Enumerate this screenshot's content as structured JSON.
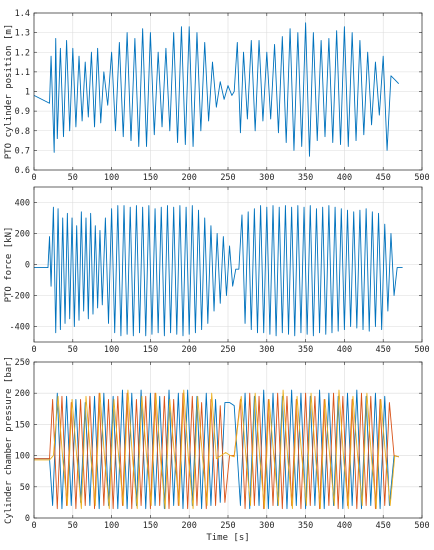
{
  "chart_data": [
    {
      "type": "line",
      "ylabel": "PTO cylinder position [m]",
      "xlabel": "",
      "xlim": [
        0,
        500
      ],
      "ylim": [
        0.6,
        1.4
      ],
      "xticks": [
        "0",
        "50",
        "100",
        "150",
        "200",
        "250",
        "300",
        "350",
        "400",
        "450",
        "500"
      ],
      "yticks": [
        "0.6",
        "0.7",
        "0.8",
        "0.9",
        "1",
        "1.1",
        "1.2",
        "1.3",
        "1.4"
      ],
      "grid": true,
      "series": [
        {
          "color": "#0072BD",
          "x": [
            0,
            20,
            22,
            26,
            28,
            30,
            34,
            38,
            42,
            46,
            50,
            54,
            58,
            62,
            66,
            70,
            74,
            78,
            82,
            86,
            90,
            95,
            100,
            105,
            110,
            115,
            120,
            125,
            130,
            135,
            140,
            145,
            150,
            155,
            160,
            165,
            170,
            175,
            180,
            185,
            190,
            195,
            200,
            205,
            210,
            215,
            220,
            225,
            230,
            235,
            240,
            245,
            250,
            255,
            258,
            262,
            266,
            270,
            275,
            280,
            285,
            290,
            295,
            300,
            305,
            310,
            315,
            320,
            325,
            330,
            335,
            340,
            345,
            350,
            355,
            360,
            365,
            370,
            375,
            380,
            385,
            390,
            395,
            400,
            405,
            410,
            415,
            420,
            425,
            430,
            435,
            440,
            445,
            450,
            455,
            460,
            465,
            470
          ],
          "values": [
            0.98,
            0.94,
            1.18,
            0.69,
            1.27,
            0.76,
            1.22,
            0.77,
            1.26,
            0.8,
            1.22,
            0.82,
            1.18,
            0.85,
            1.15,
            0.87,
            1.2,
            0.82,
            1.22,
            0.84,
            1.1,
            0.93,
            1.2,
            0.8,
            1.25,
            0.77,
            1.3,
            0.75,
            1.27,
            0.72,
            1.32,
            0.72,
            1.3,
            0.78,
            1.2,
            0.82,
            1.22,
            0.8,
            1.3,
            0.74,
            1.33,
            0.73,
            1.33,
            0.72,
            1.3,
            0.8,
            1.25,
            0.85,
            1.15,
            0.92,
            1.05,
            0.96,
            1.03,
            0.98,
            1.0,
            1.25,
            0.79,
            1.2,
            0.86,
            1.26,
            0.8,
            1.26,
            0.85,
            1.2,
            0.86,
            1.24,
            0.79,
            1.28,
            0.74,
            1.32,
            0.7,
            1.3,
            0.72,
            1.35,
            0.67,
            1.3,
            0.75,
            1.26,
            0.77,
            1.27,
            0.74,
            1.31,
            0.73,
            1.33,
            0.72,
            1.3,
            0.75,
            1.26,
            0.78,
            1.2,
            0.83,
            1.15,
            0.88,
            1.18,
            0.7,
            1.08,
            1.06,
            1.04
          ]
        }
      ]
    },
    {
      "type": "line",
      "ylabel": "PTO force [kN]",
      "xlabel": "",
      "xlim": [
        0,
        500
      ],
      "ylim": [
        -500,
        500
      ],
      "xticks": [
        "0",
        "50",
        "100",
        "150",
        "200",
        "250",
        "300",
        "350",
        "400",
        "450",
        "500"
      ],
      "yticks": [
        "-400",
        "-200",
        "0",
        "200",
        "400"
      ],
      "grid": true,
      "series": [
        {
          "color": "#0072BD",
          "x": [
            0,
            18,
            20,
            22,
            25,
            28,
            31,
            34,
            37,
            40,
            43,
            46,
            49,
            52,
            55,
            58,
            61,
            64,
            67,
            70,
            73,
            76,
            79,
            82,
            85,
            88,
            92,
            96,
            100,
            104,
            108,
            112,
            116,
            120,
            124,
            128,
            132,
            136,
            140,
            144,
            148,
            152,
            156,
            160,
            164,
            168,
            172,
            176,
            180,
            184,
            188,
            192,
            196,
            200,
            204,
            208,
            212,
            216,
            220,
            224,
            228,
            232,
            236,
            240,
            244,
            248,
            252,
            256,
            260,
            264,
            268,
            272,
            276,
            280,
            284,
            288,
            292,
            296,
            300,
            304,
            308,
            312,
            316,
            320,
            324,
            328,
            332,
            336,
            340,
            344,
            348,
            352,
            356,
            360,
            364,
            368,
            372,
            376,
            380,
            384,
            388,
            392,
            396,
            400,
            404,
            408,
            412,
            416,
            420,
            424,
            428,
            432,
            436,
            440,
            444,
            448,
            452,
            456,
            460,
            464,
            468,
            475
          ],
          "values": [
            -20,
            -20,
            180,
            -140,
            370,
            -440,
            360,
            -420,
            300,
            -380,
            330,
            -350,
            300,
            -400,
            250,
            -360,
            340,
            -300,
            300,
            -350,
            330,
            -320,
            250,
            -280,
            220,
            -260,
            300,
            -380,
            360,
            -440,
            380,
            -460,
            380,
            -450,
            370,
            -460,
            380,
            -440,
            370,
            -460,
            380,
            -450,
            360,
            -440,
            370,
            -460,
            380,
            -440,
            370,
            -450,
            380,
            -460,
            370,
            -450,
            380,
            -440,
            350,
            -420,
            300,
            -380,
            250,
            -300,
            200,
            -250,
            180,
            -200,
            120,
            -140,
            -30,
            -30,
            320,
            -380,
            340,
            -420,
            360,
            -440,
            380,
            -440,
            370,
            -450,
            380,
            -460,
            370,
            -440,
            380,
            -450,
            370,
            -460,
            380,
            -440,
            370,
            -450,
            380,
            -460,
            360,
            -440,
            370,
            -450,
            380,
            -440,
            370,
            -430,
            360,
            -420,
            350,
            -400,
            340,
            -410,
            350,
            -420,
            360,
            -430,
            340,
            -400,
            330,
            -420,
            260,
            -300,
            200,
            -200,
            -20,
            -20
          ]
        }
      ]
    },
    {
      "type": "line",
      "ylabel": "Cylinder chamber pressure [bar]",
      "xlabel": "Time [s]",
      "xlim": [
        0,
        500
      ],
      "ylim": [
        0,
        250
      ],
      "xticks": [
        "0",
        "50",
        "100",
        "150",
        "200",
        "250",
        "300",
        "350",
        "400",
        "450",
        "500"
      ],
      "yticks": [
        "0",
        "50",
        "100",
        "150",
        "200",
        "250"
      ],
      "grid": true,
      "series": [
        {
          "color": "#0072BD",
          "x": [
            0,
            20,
            24,
            30,
            36,
            42,
            48,
            54,
            60,
            66,
            72,
            78,
            84,
            90,
            96,
            102,
            108,
            114,
            120,
            126,
            132,
            138,
            144,
            150,
            156,
            162,
            168,
            174,
            180,
            186,
            192,
            198,
            204,
            210,
            216,
            222,
            228,
            234,
            240,
            246,
            252,
            258,
            266,
            272,
            278,
            284,
            290,
            296,
            302,
            308,
            314,
            320,
            326,
            332,
            338,
            344,
            350,
            356,
            362,
            368,
            374,
            380,
            386,
            392,
            398,
            404,
            410,
            416,
            422,
            428,
            434,
            440,
            446,
            452,
            458,
            464,
            470
          ],
          "values": [
            95,
            95,
            20,
            200,
            15,
            195,
            20,
            190,
            25,
            185,
            20,
            195,
            15,
            200,
            20,
            195,
            15,
            205,
            15,
            200,
            20,
            205,
            15,
            200,
            20,
            195,
            15,
            205,
            20,
            200,
            15,
            205,
            20,
            195,
            15,
            200,
            20,
            190,
            25,
            185,
            185,
            180,
            20,
            200,
            15,
            195,
            20,
            205,
            15,
            200,
            20,
            195,
            15,
            205,
            20,
            200,
            15,
            195,
            20,
            205,
            15,
            200,
            20,
            195,
            15,
            200,
            20,
            205,
            15,
            195,
            20,
            200,
            15,
            195,
            20,
            100,
            98
          ]
        },
        {
          "color": "#D95319",
          "x": [
            0,
            20,
            24,
            30,
            36,
            42,
            48,
            54,
            60,
            66,
            72,
            78,
            84,
            90,
            96,
            102,
            108,
            114,
            120,
            126,
            132,
            138,
            144,
            150,
            156,
            162,
            168,
            174,
            180,
            186,
            192,
            198,
            204,
            210,
            216,
            222,
            228,
            234,
            240,
            246,
            252,
            258,
            266,
            272,
            278,
            284,
            290,
            296,
            302,
            308,
            314,
            320,
            326,
            332,
            338,
            344,
            350,
            356,
            362,
            368,
            374,
            380,
            386,
            392,
            398,
            404,
            410,
            416,
            422,
            428,
            434,
            440,
            446,
            452,
            458,
            464,
            470
          ],
          "values": [
            95,
            95,
            190,
            15,
            195,
            20,
            185,
            15,
            190,
            20,
            195,
            15,
            200,
            20,
            190,
            15,
            195,
            20,
            200,
            15,
            190,
            20,
            195,
            15,
            200,
            20,
            195,
            15,
            190,
            20,
            200,
            15,
            195,
            20,
            185,
            15,
            190,
            20,
            180,
            25,
            100,
            100,
            190,
            15,
            200,
            20,
            195,
            15,
            190,
            20,
            200,
            15,
            195,
            20,
            190,
            15,
            200,
            20,
            195,
            15,
            190,
            20,
            200,
            15,
            195,
            20,
            190,
            15,
            200,
            20,
            195,
            15,
            190,
            20,
            185,
            100,
            98
          ]
        },
        {
          "color": "#EDB120",
          "x": [
            0,
            20,
            25,
            31,
            37,
            43,
            49,
            55,
            61,
            67,
            73,
            79,
            85,
            91,
            97,
            103,
            109,
            115,
            121,
            127,
            133,
            139,
            145,
            151,
            157,
            163,
            169,
            175,
            181,
            187,
            193,
            199,
            205,
            211,
            217,
            223,
            229,
            235,
            241,
            247,
            253,
            258,
            267,
            273,
            279,
            285,
            291,
            297,
            303,
            309,
            315,
            321,
            327,
            333,
            339,
            345,
            351,
            357,
            363,
            369,
            375,
            381,
            387,
            393,
            399,
            405,
            411,
            417,
            423,
            429,
            435,
            441,
            447,
            453,
            459,
            465,
            470
          ],
          "values": [
            93,
            93,
            100,
            195,
            95,
            20,
            190,
            100,
            15,
            195,
            100,
            20,
            200,
            95,
            15,
            190,
            100,
            20,
            205,
            95,
            15,
            195,
            100,
            20,
            200,
            95,
            15,
            190,
            100,
            20,
            205,
            95,
            15,
            195,
            100,
            20,
            200,
            95,
            100,
            105,
            100,
            98,
            195,
            100,
            20,
            200,
            95,
            15,
            190,
            100,
            20,
            205,
            95,
            15,
            195,
            100,
            20,
            200,
            95,
            15,
            190,
            100,
            20,
            205,
            95,
            15,
            195,
            100,
            20,
            200,
            95,
            15,
            190,
            100,
            20,
            100,
            98
          ]
        }
      ]
    }
  ]
}
